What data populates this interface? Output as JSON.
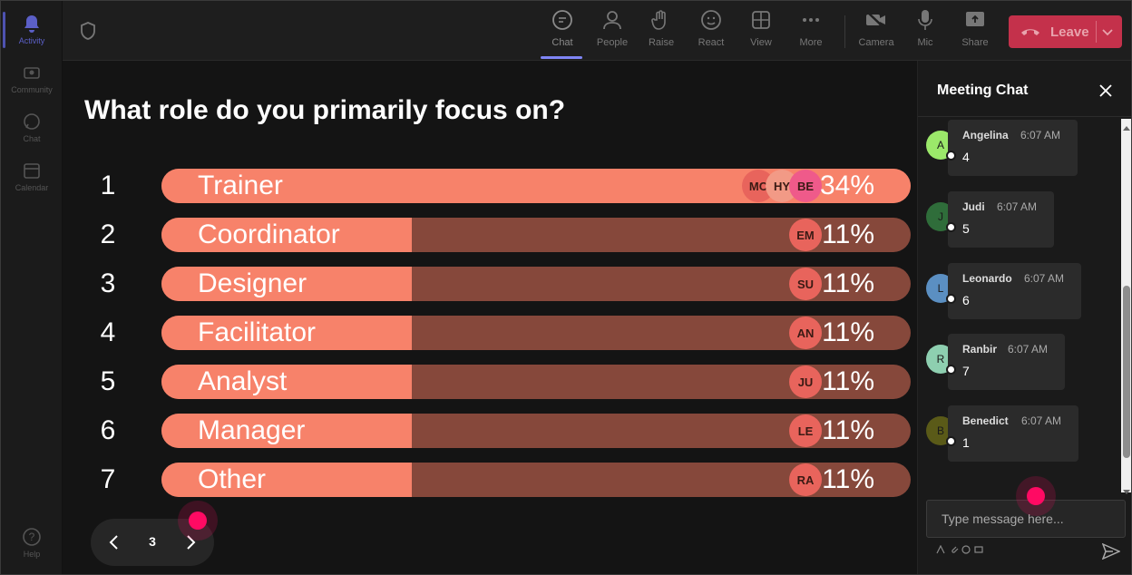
{
  "rail": {
    "items": [
      {
        "label": "Activity",
        "icon": "bell-icon"
      },
      {
        "label": "Community",
        "icon": "community-icon"
      },
      {
        "label": "Chat",
        "icon": "chat-icon"
      },
      {
        "label": "Calendar",
        "icon": "calendar-icon"
      },
      {
        "label": "Help",
        "icon": "help-icon"
      }
    ]
  },
  "toolbar": {
    "chat": "Chat",
    "people": "People",
    "raise": "Raise",
    "react": "React",
    "view": "View",
    "more": "More",
    "camera": "Camera",
    "mic": "Mic",
    "share": "Share",
    "leave": "Leave"
  },
  "poll": {
    "question": "What role do you primarily focus on?",
    "options": [
      {
        "num": "1",
        "label": "Trainer",
        "percent": 34,
        "pct_text": "34%",
        "voters": [
          "MC",
          "HY",
          "BE"
        ]
      },
      {
        "num": "2",
        "label": "Coordinator",
        "percent": 11,
        "pct_text": "11%",
        "voters": [
          "EM"
        ]
      },
      {
        "num": "3",
        "label": "Designer",
        "percent": 11,
        "pct_text": "11%",
        "voters": [
          "SU"
        ]
      },
      {
        "num": "4",
        "label": "Facilitator",
        "percent": 11,
        "pct_text": "11%",
        "voters": [
          "AN"
        ]
      },
      {
        "num": "5",
        "label": "Analyst",
        "percent": 11,
        "pct_text": "11%",
        "voters": [
          "JU"
        ]
      },
      {
        "num": "6",
        "label": "Manager",
        "percent": 11,
        "pct_text": "11%",
        "voters": [
          "LE"
        ]
      },
      {
        "num": "7",
        "label": "Other",
        "percent": 11,
        "pct_text": "11%",
        "voters": [
          "RA"
        ]
      }
    ],
    "page": "3"
  },
  "chat": {
    "title": "Meeting Chat",
    "messages": [
      {
        "initial": "A",
        "name": "Angelina",
        "time": "6:07 AM",
        "text": "4",
        "color": "#9be86a"
      },
      {
        "initial": "J",
        "name": "Judi",
        "time": "6:07 AM",
        "text": "5",
        "color": "#2f6d3a"
      },
      {
        "initial": "L",
        "name": "Leonardo",
        "time": "6:07 AM",
        "text": "6",
        "color": "#5b8fc2"
      },
      {
        "initial": "R",
        "name": "Ranbir",
        "time": "6:07 AM",
        "text": "7",
        "color": "#8ecfb0"
      },
      {
        "initial": "B",
        "name": "Benedict",
        "time": "6:07 AM",
        "text": "1",
        "color": "#5a5a18"
      }
    ],
    "input_placeholder": "Type message here..."
  },
  "colors": {
    "bar_fill": "#f7826a",
    "bar_track": "#86483b",
    "leave": "#c4314b",
    "accent": "#7f85f5",
    "cursor": "#ff0a63"
  }
}
